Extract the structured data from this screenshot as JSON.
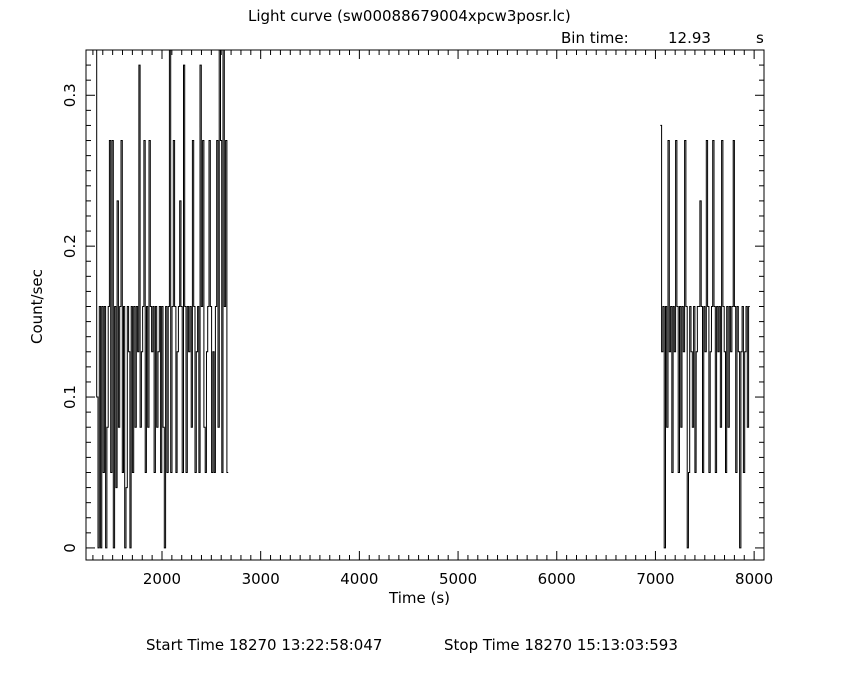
{
  "title": "Light curve (sw00088679004xpcw3posr.lc)",
  "bin": {
    "label": "Bin time:",
    "value": "12.93",
    "unit": "s"
  },
  "footer": {
    "start": "Start Time 18270 13:22:58:047",
    "stop": "Stop Time 18270 15:13:03:593"
  },
  "chart_data": {
    "type": "line",
    "title": "Light curve (sw00088679004xpcw3posr.lc)",
    "xlabel": "Time (s)",
    "ylabel": "Count/sec",
    "xlim": [
      1230,
      8100
    ],
    "ylim": [
      -0.008,
      0.33
    ],
    "xticks": [
      2000,
      3000,
      4000,
      5000,
      6000,
      7000,
      8000
    ],
    "xtick_labels": [
      "2000",
      "3000",
      "4000",
      "5000",
      "6000",
      "7000",
      "8000"
    ],
    "yticks": [
      0,
      0.1,
      0.2,
      0.3
    ],
    "ytick_labels": [
      "0",
      "0.1",
      "0.2",
      "0.3"
    ],
    "grid": false,
    "bin_width": 12.93,
    "series": [
      {
        "x": [
          1332,
          1345,
          1358,
          1371,
          1384,
          1397,
          1410,
          1422,
          1435,
          1448,
          1461,
          1474,
          1487,
          1500,
          1513,
          1526,
          1539,
          1552,
          1565,
          1578,
          1591,
          1604,
          1616,
          1629,
          1642,
          1655,
          1668,
          1681,
          1694,
          1707,
          1720,
          1733,
          1746,
          1759,
          1772,
          1785,
          1798,
          1810,
          1823,
          1836,
          1849,
          1862,
          1875,
          1888,
          1901,
          1914,
          1927,
          1940,
          1953,
          1966,
          1979,
          1992,
          2004,
          2017,
          2030,
          2043,
          2056,
          2069,
          2082,
          2095,
          2108,
          2121,
          2134,
          2147,
          2160,
          2173,
          2186,
          2198,
          2211,
          2224,
          2237,
          2250,
          2263,
          2276,
          2289,
          2302,
          2315,
          2328,
          2341,
          2354,
          2367,
          2380,
          2392,
          2405,
          2418,
          2431,
          2444,
          2457,
          2470,
          2483,
          2496,
          2509,
          2522,
          2535,
          2548,
          2561,
          2574,
          2586,
          2599,
          2612,
          2625,
          2638,
          2651,
          2664
        ],
        "y": [
          0.33,
          0.1,
          0,
          0.16,
          0,
          0.16,
          0.05,
          0.16,
          0,
          0.08,
          0.16,
          0.27,
          0.05,
          0.27,
          0,
          0.16,
          0.04,
          0.23,
          0.08,
          0.16,
          0.27,
          0.05,
          0.16,
          0,
          0.04,
          0.16,
          0.13,
          0,
          0.16,
          0.05,
          0.16,
          0.08,
          0.16,
          0.13,
          0.32,
          0.08,
          0.13,
          0.16,
          0.27,
          0.05,
          0.16,
          0.08,
          0.27,
          0.16,
          0.13,
          0.16,
          0.05,
          0.16,
          0.08,
          0.13,
          0.16,
          0.05,
          0.16,
          0.08,
          0,
          0.16,
          0.05,
          0.16,
          0.33,
          0.05,
          0.16,
          0.27,
          0.16,
          0.05,
          0.13,
          0.16,
          0.23,
          0.16,
          0.05,
          0.32,
          0.16,
          0.05,
          0.16,
          0.13,
          0.16,
          0.08,
          0.27,
          0.16,
          0.05,
          0.13,
          0.16,
          0.05,
          0.32,
          0.16,
          0.27,
          0.08,
          0.05,
          0.13,
          0.16,
          0.27,
          0.16,
          0.05,
          0.13,
          0.05,
          0.16,
          0.27,
          0.08,
          0.33,
          0.27,
          0.05,
          0.33,
          0.16,
          0.27,
          0.05
        ]
      },
      {
        "x": [
          7056,
          7069,
          7082,
          7095,
          7108,
          7121,
          7134,
          7147,
          7160,
          7172,
          7185,
          7198,
          7211,
          7224,
          7237,
          7250,
          7263,
          7276,
          7289,
          7302,
          7315,
          7328,
          7341,
          7354,
          7367,
          7380,
          7393,
          7406,
          7419,
          7431,
          7444,
          7457,
          7470,
          7483,
          7496,
          7509,
          7522,
          7535,
          7548,
          7561,
          7574,
          7587,
          7600,
          7613,
          7626,
          7639,
          7652,
          7664,
          7677,
          7690,
          7703,
          7716,
          7729,
          7742,
          7755,
          7768,
          7781,
          7794,
          7807,
          7820,
          7833,
          7846,
          7859,
          7872,
          7885,
          7898,
          7911,
          7924,
          7937,
          7950
        ],
        "y": [
          0.28,
          0.13,
          0.16,
          0,
          0.16,
          0.08,
          0.27,
          0.13,
          0.16,
          0.05,
          0.16,
          0.13,
          0.27,
          0.16,
          0.05,
          0.16,
          0.08,
          0.16,
          0.13,
          0.27,
          0.16,
          0,
          0.05,
          0.16,
          0.13,
          0.08,
          0.16,
          0.05,
          0.13,
          0.16,
          0.16,
          0.23,
          0.16,
          0.05,
          0.16,
          0.13,
          0.27,
          0.16,
          0.05,
          0.13,
          0.16,
          0.27,
          0.16,
          0.05,
          0.16,
          0.13,
          0.16,
          0.08,
          0.27,
          0.16,
          0.13,
          0.05,
          0.16,
          0.08,
          0.16,
          0.13,
          0.16,
          0.27,
          0.16,
          0.05,
          0.16,
          0.13,
          0,
          0.13,
          0.16,
          0.05,
          0.13,
          0.16,
          0.08,
          0.16
        ]
      }
    ]
  }
}
